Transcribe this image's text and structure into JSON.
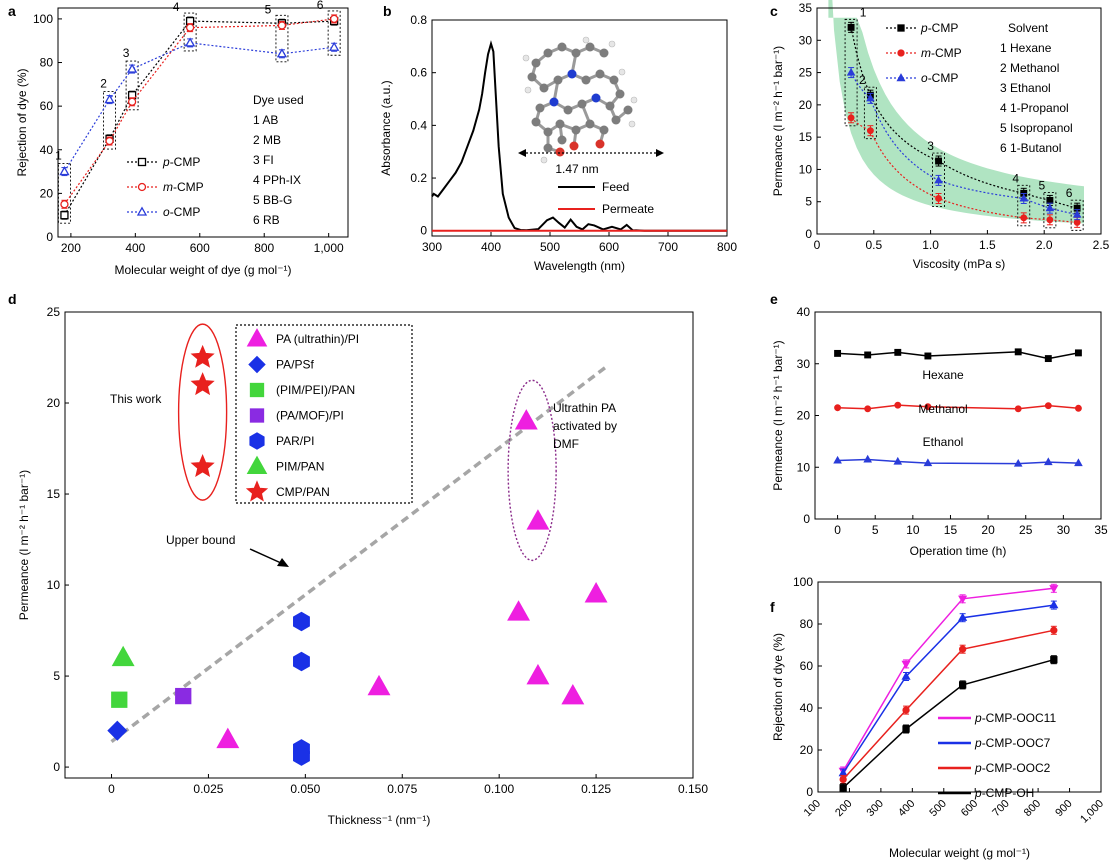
{
  "figure": {
    "panel_labels": [
      "a",
      "b",
      "c",
      "d",
      "e",
      "f"
    ]
  },
  "chart_data": [
    {
      "id": "a",
      "type": "line",
      "xlabel": "Molecular weight of dye (g mol⁻¹)",
      "ylabel": "Rejection of dye (%)",
      "xlim": [
        160,
        1060
      ],
      "ylim": [
        0,
        105
      ],
      "xticks": [
        200,
        400,
        600,
        800,
        1000
      ],
      "xtick_labels": [
        "200",
        "400",
        "600",
        "800",
        "1,000"
      ],
      "yticks": [
        0,
        20,
        40,
        60,
        80,
        100
      ],
      "x": [
        180,
        320,
        390,
        570,
        855,
        1017
      ],
      "box_labels": [
        "1",
        "2",
        "3",
        "4",
        "5",
        "6"
      ],
      "series": [
        {
          "name": "p-CMP",
          "prefix": "p",
          "suffix": "-CMP",
          "color": "#000000",
          "marker": "square",
          "values": [
            10,
            45,
            65,
            99,
            98,
            99
          ]
        },
        {
          "name": "m-CMP",
          "prefix": "m",
          "suffix": "-CMP",
          "color": "#e8211e",
          "marker": "circle",
          "values": [
            15,
            44,
            62,
            96,
            97,
            100
          ]
        },
        {
          "name": "o-CMP",
          "prefix": "o",
          "suffix": "-CMP",
          "color": "#2a3cd9",
          "marker": "triangle",
          "values": [
            30,
            63,
            77,
            89,
            84,
            87
          ]
        }
      ],
      "dye_legend_title": "Dye used",
      "dye_list": [
        "1  AB",
        "2  MB",
        "3  FI",
        "4  PPh-IX",
        "5  BB-G",
        "6  RB"
      ]
    },
    {
      "id": "b",
      "type": "line",
      "xlabel": "Wavelength (nm)",
      "ylabel": "Absorbance (a.u.)",
      "xlim": [
        300,
        800
      ],
      "ylim": [
        -0.02,
        0.8
      ],
      "xticks": [
        300,
        400,
        500,
        600,
        700,
        800
      ],
      "yticks": [
        0,
        0.2,
        0.4,
        0.6,
        0.8
      ],
      "ytick_labels": [
        "0",
        "0.2",
        "0.4",
        "0.6",
        "0.8"
      ],
      "series": [
        {
          "name": "Feed",
          "color": "#000000",
          "x": [
            300,
            303,
            310,
            320,
            330,
            340,
            350,
            360,
            370,
            380,
            385,
            390,
            395,
            400,
            404,
            408,
            413,
            420,
            430,
            440,
            450,
            460,
            480,
            495,
            505,
            515,
            525,
            535,
            545,
            555,
            565,
            575,
            590,
            605,
            620,
            630,
            640,
            660,
            700,
            750,
            800
          ],
          "y": [
            0.13,
            0.14,
            0.13,
            0.16,
            0.19,
            0.22,
            0.26,
            0.32,
            0.38,
            0.46,
            0.52,
            0.6,
            0.67,
            0.71,
            0.68,
            0.52,
            0.32,
            0.14,
            0.05,
            0.01,
            0.003,
            0.002,
            0.006,
            0.04,
            0.05,
            0.03,
            0.012,
            0.042,
            0.015,
            0.005,
            0.025,
            0.02,
            0.005,
            0.015,
            0.005,
            0.022,
            0.002,
            0.0,
            0.0,
            0.0,
            0.0
          ]
        },
        {
          "name": "Permeate",
          "color": "#e8211e",
          "x": [
            300,
            800
          ],
          "y": [
            0.0,
            0.0
          ]
        }
      ],
      "annotation": "1.47 nm"
    },
    {
      "id": "c",
      "type": "scatter",
      "xlabel": "Viscosity (mPa s)",
      "ylabel": "Permeance (l m⁻² h⁻¹ bar⁻¹)",
      "xlim": [
        0,
        2.5
      ],
      "ylim": [
        0,
        35
      ],
      "xticks": [
        0,
        0.5,
        1.0,
        1.5,
        2.0,
        2.5
      ],
      "xtick_labels": [
        "0",
        "0.5",
        "1.0",
        "1.5",
        "2.0",
        "2.5"
      ],
      "yticks": [
        0,
        5,
        10,
        15,
        20,
        25,
        30,
        35
      ],
      "x": [
        0.3,
        0.47,
        1.07,
        1.82,
        2.05,
        2.29
      ],
      "box_labels": [
        "1",
        "2",
        "3",
        "4",
        "5",
        "6"
      ],
      "series": [
        {
          "name": "p-CMP",
          "prefix": "p",
          "suffix": "-CMP",
          "color": "#000000",
          "marker": "square",
          "values": [
            32,
            21.5,
            11.3,
            6.3,
            5.2,
            4.0
          ]
        },
        {
          "name": "m-CMP",
          "prefix": "m",
          "suffix": "-CMP",
          "color": "#e8211e",
          "marker": "circle",
          "values": [
            18,
            16,
            5.5,
            2.5,
            2.2,
            1.8
          ]
        },
        {
          "name": "o-CMP",
          "prefix": "o",
          "suffix": "-CMP",
          "color": "#2a3cd9",
          "marker": "triangle",
          "values": [
            25,
            21,
            8.3,
            5.5,
            4.0,
            3.0
          ]
        }
      ],
      "solvent_title": "Solvent",
      "solvent_list": [
        "1  Hexane",
        "2  Methanol",
        "3  Ethanol",
        "4  1-Propanol",
        "5  Isopropanol",
        "6  1-Butanol"
      ]
    },
    {
      "id": "d",
      "type": "scatter",
      "xlabel": "Thickness⁻¹ (nm⁻¹)",
      "ylabel": "Permeance (l m⁻² h⁻¹ bar⁻¹)",
      "xlim": [
        -0.012,
        0.15
      ],
      "ylim": [
        -0.6,
        25
      ],
      "xticks": [
        0,
        0.025,
        0.05,
        0.075,
        0.1,
        0.125,
        0.15
      ],
      "xtick_labels": [
        "0",
        "0.025",
        "0.050",
        "0.075",
        "0.100",
        "0.125",
        "0.150"
      ],
      "yticks": [
        0,
        5,
        10,
        15,
        20,
        25
      ],
      "series": [
        {
          "name": "PA (ultrathin)/PI",
          "color": "#ee1fe0",
          "marker": "triangle",
          "points": [
            [
              0.03,
              1.5
            ],
            [
              0.069,
              4.4
            ],
            [
              0.105,
              8.5
            ],
            [
              0.11,
              5.0
            ],
            [
              0.119,
              3.9
            ],
            [
              0.125,
              9.5
            ],
            [
              0.107,
              19.0
            ],
            [
              0.11,
              13.5
            ]
          ]
        },
        {
          "name": "PA/PSf",
          "color": "#1a31e6",
          "marker": "diamond",
          "points": [
            [
              0.0015,
              2.0
            ]
          ]
        },
        {
          "name": "(PIM/PEI)/PAN",
          "color": "#43d63c",
          "marker": "square",
          "points": [
            [
              0.002,
              3.7
            ]
          ]
        },
        {
          "name": "(PA/MOF)/PI",
          "color": "#8a2be2",
          "marker": "square",
          "points": [
            [
              0.0185,
              3.9
            ]
          ]
        },
        {
          "name": "PAR/PI",
          "color": "#1a31e6",
          "marker": "hexagon",
          "points": [
            [
              0.049,
              8.0
            ],
            [
              0.049,
              5.8
            ],
            [
              0.049,
              1.0
            ],
            [
              0.049,
              0.6
            ]
          ]
        },
        {
          "name": "PIM/PAN",
          "color": "#43d63c",
          "marker": "triangle",
          "points": [
            [
              0.003,
              6.0
            ]
          ]
        },
        {
          "name": "CMP/PAN",
          "color": "#e8211e",
          "marker": "star",
          "points": [
            [
              0.0235,
              22.5
            ],
            [
              0.0235,
              21.0
            ],
            [
              0.0235,
              16.5
            ]
          ]
        }
      ],
      "upper_bound": {
        "label": "Upper bound",
        "x": [
          0.0,
          0.1277
        ],
        "y": [
          1.4,
          22.0
        ]
      },
      "annotations": {
        "this_work": "This work",
        "ultrathin": [
          "Ultrathin PA",
          "activated by",
          "DMF"
        ]
      }
    },
    {
      "id": "e",
      "type": "line",
      "xlabel": "Operation time (h)",
      "ylabel": "Permeance (l m⁻² h⁻¹ bar⁻¹)",
      "xlim": [
        -3,
        35
      ],
      "ylim": [
        0,
        40
      ],
      "xticks": [
        0,
        5,
        10,
        15,
        20,
        25,
        30,
        35
      ],
      "yticks": [
        0,
        10,
        20,
        30,
        40
      ],
      "x": [
        0,
        4,
        8,
        12,
        24,
        28,
        32
      ],
      "series": [
        {
          "name": "Hexane",
          "color": "#000000",
          "marker": "square",
          "values": [
            32.0,
            31.7,
            32.2,
            31.5,
            32.3,
            31.0,
            32.1
          ]
        },
        {
          "name": "Methanol",
          "color": "#e8211e",
          "marker": "circle",
          "values": [
            21.5,
            21.3,
            22.0,
            21.7,
            21.3,
            21.9,
            21.4
          ]
        },
        {
          "name": "Ethanol",
          "color": "#2a3cd9",
          "marker": "triangle",
          "values": [
            11.3,
            11.5,
            11.1,
            10.8,
            10.7,
            11.0,
            10.8
          ]
        }
      ]
    },
    {
      "id": "f",
      "type": "line",
      "xlabel": "Molecular weight (g mol⁻¹)",
      "ylabel": "Rejection of dye (%)",
      "xlim": [
        100,
        1000
      ],
      "ylim": [
        0,
        100
      ],
      "xticks": [
        100,
        200,
        300,
        400,
        500,
        600,
        700,
        800,
        900,
        1000
      ],
      "xtick_labels": [
        "100",
        "200",
        "300",
        "400",
        "500",
        "600",
        "700",
        "800",
        "900",
        "1,000"
      ],
      "yticks": [
        0,
        20,
        40,
        60,
        80,
        100
      ],
      "x": [
        180,
        380,
        560,
        850
      ],
      "series": [
        {
          "name": "p-CMP-OOC11",
          "prefix": "p",
          "suffix": "-CMP-OOC11",
          "color": "#ee1fe0",
          "marker": "triangle-down",
          "values": [
            10,
            61,
            92,
            97
          ]
        },
        {
          "name": "p-CMP-OOC7",
          "prefix": "p",
          "suffix": "-CMP-OOC7",
          "color": "#1a31e6",
          "marker": "triangle",
          "values": [
            9,
            55,
            83,
            89
          ]
        },
        {
          "name": "p-CMP-OOC2",
          "prefix": "p",
          "suffix": "-CMP-OOC2",
          "color": "#e8211e",
          "marker": "circle",
          "values": [
            6,
            39,
            68,
            77
          ]
        },
        {
          "name": "p-CMP-OH",
          "prefix": "p",
          "suffix": "-CMP-OH",
          "color": "#000000",
          "marker": "square",
          "values": [
            2,
            30,
            51,
            63
          ]
        }
      ]
    }
  ]
}
